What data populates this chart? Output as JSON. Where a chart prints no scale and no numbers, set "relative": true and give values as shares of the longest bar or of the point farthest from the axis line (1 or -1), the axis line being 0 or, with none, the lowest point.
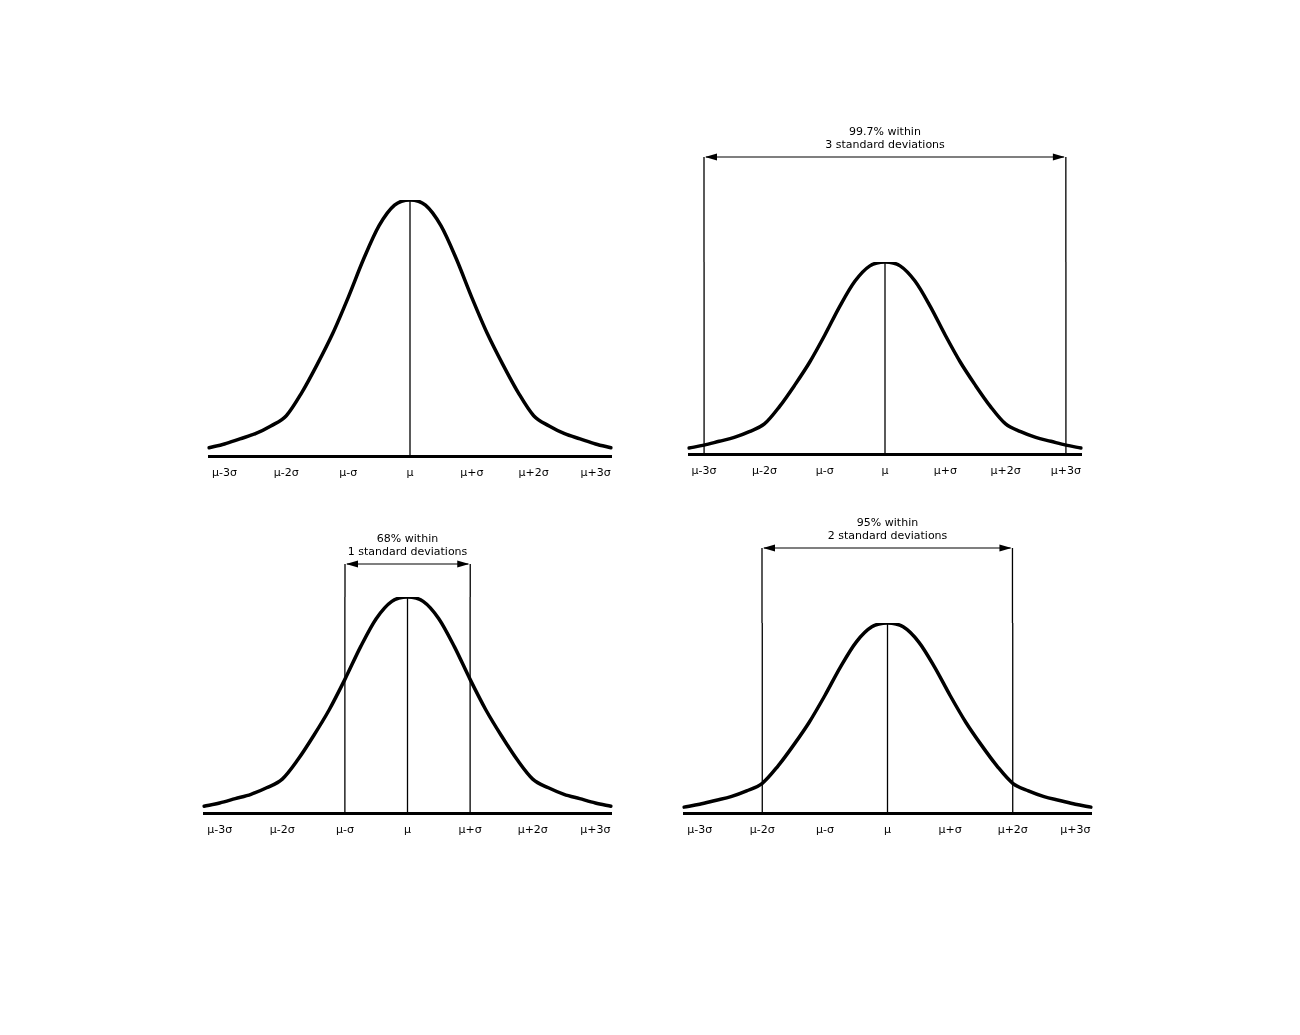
{
  "chart_data": [
    {
      "type": "line",
      "relative": true,
      "marker": "none",
      "legend": false,
      "grid": false,
      "categories": [
        null,
        "μ-3σ",
        null,
        null,
        null,
        "μ-2σ",
        null,
        null,
        null,
        "μ-σ",
        null,
        null,
        null,
        "μ",
        null,
        null,
        null,
        "μ+σ",
        null,
        null,
        null,
        "μ+2σ",
        null,
        null,
        null,
        "μ+3σ",
        null
      ],
      "series": [
        {
          "color": "#000000",
          "values": [
            0.035,
            0.05,
            0.07,
            0.09,
            0.12,
            0.16,
            0.25,
            0.36,
            0.48,
            0.62,
            0.77,
            0.9,
            0.98,
            1,
            0.98,
            0.9,
            0.77,
            0.62,
            0.48,
            0.36,
            0.25,
            0.16,
            0.12,
            0.09,
            0.07,
            0.05,
            0.035
          ]
        }
      ],
      "ref_lines": [
        {
          "axis": "x",
          "value": "μ",
          "color": "#000000"
        }
      ]
    },
    {
      "type": "line",
      "relative": true,
      "marker": "none",
      "legend": false,
      "grid": false,
      "categories": [
        null,
        "μ-3σ",
        null,
        null,
        null,
        "μ-2σ",
        null,
        null,
        null,
        "μ-σ",
        null,
        null,
        null,
        "μ",
        null,
        null,
        null,
        "μ+σ",
        null,
        null,
        null,
        "μ+2σ",
        null,
        null,
        null,
        "μ+3σ",
        null
      ],
      "series": [
        {
          "color": "#000000",
          "values": [
            0.035,
            0.05,
            0.07,
            0.09,
            0.12,
            0.16,
            0.25,
            0.36,
            0.48,
            0.62,
            0.77,
            0.9,
            0.98,
            1,
            0.98,
            0.9,
            0.77,
            0.62,
            0.48,
            0.36,
            0.25,
            0.16,
            0.12,
            0.09,
            0.07,
            0.05,
            0.035
          ]
        }
      ],
      "ref_lines": [
        {
          "axis": "x",
          "value": "μ-3σ",
          "color": "#000000"
        },
        {
          "axis": "x",
          "value": "μ",
          "color": "#000000"
        },
        {
          "axis": "x",
          "value": "μ+3σ",
          "color": "#000000"
        }
      ],
      "annotations": [
        "99.7% within\n3 standard deviations"
      ]
    },
    {
      "type": "line",
      "relative": true,
      "marker": "none",
      "legend": false,
      "grid": false,
      "categories": [
        null,
        "μ-3σ",
        null,
        null,
        null,
        "μ-2σ",
        null,
        null,
        null,
        "μ-σ",
        null,
        null,
        null,
        "μ",
        null,
        null,
        null,
        "μ+σ",
        null,
        null,
        null,
        "μ+2σ",
        null,
        null,
        null,
        "μ+3σ",
        null
      ],
      "series": [
        {
          "color": "#000000",
          "values": [
            0.035,
            0.05,
            0.07,
            0.09,
            0.12,
            0.16,
            0.25,
            0.36,
            0.48,
            0.62,
            0.77,
            0.9,
            0.98,
            1,
            0.98,
            0.9,
            0.77,
            0.62,
            0.48,
            0.36,
            0.25,
            0.16,
            0.12,
            0.09,
            0.07,
            0.05,
            0.035
          ]
        }
      ],
      "ref_lines": [
        {
          "axis": "x",
          "value": "μ-σ",
          "color": "#000000"
        },
        {
          "axis": "x",
          "value": "μ",
          "color": "#000000"
        },
        {
          "axis": "x",
          "value": "μ+σ",
          "color": "#000000"
        }
      ],
      "annotations": [
        "68% within\n1 standard deviations"
      ]
    },
    {
      "type": "line",
      "relative": true,
      "marker": "none",
      "legend": false,
      "grid": false,
      "categories": [
        null,
        "μ-3σ",
        null,
        null,
        null,
        "μ-2σ",
        null,
        null,
        null,
        "μ-σ",
        null,
        null,
        null,
        "μ",
        null,
        null,
        null,
        "μ+σ",
        null,
        null,
        null,
        "μ+2σ",
        null,
        null,
        null,
        "μ+3σ",
        null
      ],
      "series": [
        {
          "color": "#000000",
          "values": [
            0.035,
            0.05,
            0.07,
            0.09,
            0.12,
            0.16,
            0.25,
            0.36,
            0.48,
            0.62,
            0.77,
            0.9,
            0.98,
            1,
            0.98,
            0.9,
            0.77,
            0.62,
            0.48,
            0.36,
            0.25,
            0.16,
            0.12,
            0.09,
            0.07,
            0.05,
            0.035
          ]
        }
      ],
      "ref_lines": [
        {
          "axis": "x",
          "value": "μ-2σ",
          "color": "#000000"
        },
        {
          "axis": "x",
          "value": "μ",
          "color": "#000000"
        },
        {
          "axis": "x",
          "value": "μ+2σ",
          "color": "#000000"
        }
      ],
      "annotations": [
        "95% within\n2 standard deviations"
      ]
    }
  ]
}
